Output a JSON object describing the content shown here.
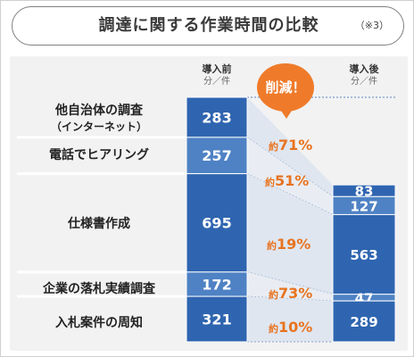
{
  "title": "調達に関する作業時間の比較",
  "note": "（※3）",
  "columns": {
    "before": {
      "label": "導入前",
      "unit": "分／件"
    },
    "after": {
      "label": "導入後",
      "unit": "分／件"
    }
  },
  "badge": "削減！",
  "reduction_prefix": "約",
  "rows": [
    {
      "label": "他自治体の調査",
      "sub": "（インターネット）"
    },
    {
      "label": "電話でヒアリング",
      "sub": ""
    },
    {
      "label": "仕様書作成",
      "sub": ""
    },
    {
      "label": "企業の落札実績調査",
      "sub": ""
    },
    {
      "label": "入札案件の周知",
      "sub": ""
    }
  ],
  "colors": {
    "accent": "#ef7b2a",
    "bar_dark": "#2f65b0",
    "bar_light": "#4f82c4",
    "panel": "#f2f2f2"
  },
  "chart_data": {
    "type": "bar",
    "categories": [
      "他自治体の調査（インターネット）",
      "電話でヒアリング",
      "仕様書作成",
      "企業の落札実績調査",
      "入札案件の周知"
    ],
    "series": [
      {
        "name": "導入前",
        "values": [
          283,
          257,
          695,
          172,
          321
        ]
      },
      {
        "name": "導入後",
        "values": [
          83,
          127,
          563,
          47,
          289
        ]
      }
    ],
    "reductions": [
      "71%",
      "51%",
      "19%",
      "73%",
      "10%"
    ],
    "unit": "分／件"
  }
}
